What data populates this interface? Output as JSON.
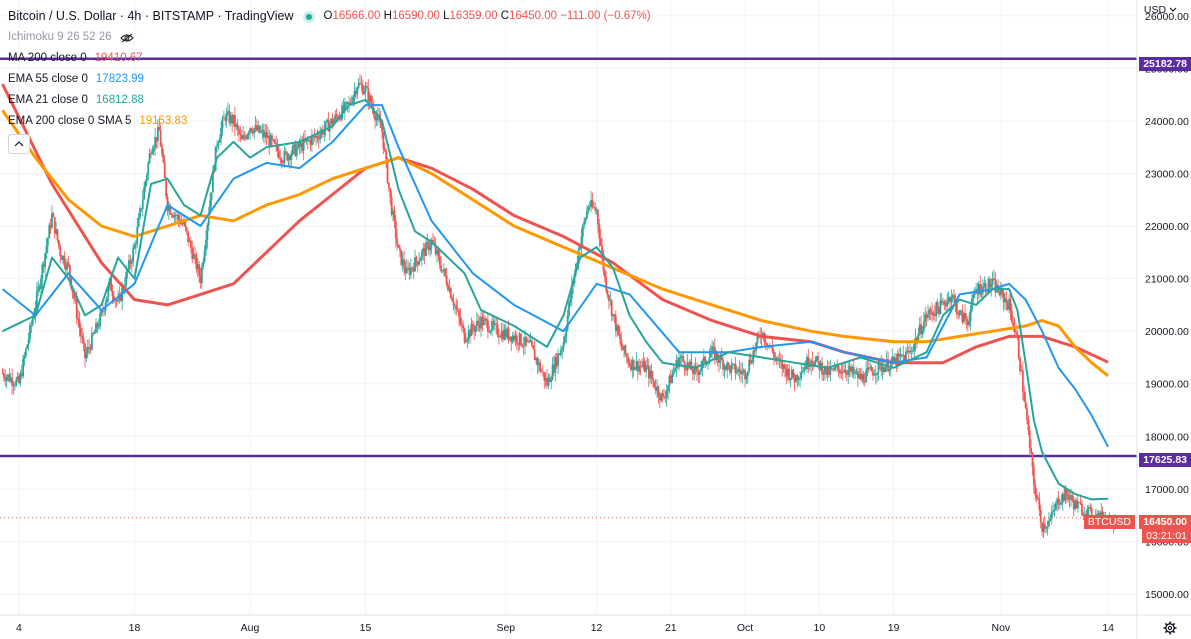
{
  "header": {
    "title": "Bitcoin / U.S. Dollar · 4h · BITSTAMP · TradingView",
    "ohlc": [
      {
        "k": "O",
        "v": "16566.00"
      },
      {
        "k": "H",
        "v": "16590.00"
      },
      {
        "k": "L",
        "v": "16359.00"
      },
      {
        "k": "C",
        "v": "16450.00"
      }
    ],
    "change": "−111.00 (−0.67%)",
    "currency_label": "USD"
  },
  "indicators": [
    {
      "label": "Ichimoku 9 26 52 26",
      "value": "",
      "color": "#9598a1"
    },
    {
      "label": "MA 200 close 0",
      "value": "19410.67",
      "color": "#ef5350"
    },
    {
      "label": "EMA 55 close 0",
      "value": "17823.99",
      "color": "#2196f3"
    },
    {
      "label": "EMA 21 close 0",
      "value": "16812.88",
      "color": "#26a69a"
    },
    {
      "label": "EMA 200 close 0 SMA 5",
      "value": "19153.83",
      "color": "#ff9800"
    }
  ],
  "price_tags": {
    "res_high": "25182.78",
    "res_low": "17625.83",
    "symbol": "BTCUSD",
    "last": "16450.00",
    "countdown": "03:21:01"
  },
  "chart_data": {
    "type": "line",
    "title": "Bitcoin / U.S. Dollar · 4h · BITSTAMP",
    "ylim": [
      14600,
      26300
    ],
    "y_ticks": [
      15000,
      16000,
      17000,
      18000,
      19000,
      20000,
      21000,
      22000,
      23000,
      24000,
      25000,
      26000
    ],
    "y_tick_labels": [
      "15000.00",
      "16000.00",
      "17000.00",
      "18000.00",
      "19000.00",
      "20000.00",
      "21000.00",
      "22000.00",
      "23000.00",
      "24000.00",
      "25000.00",
      "26000.00"
    ],
    "x_ticks": [
      {
        "label": "4",
        "t": 0
      },
      {
        "label": "18",
        "t": 14
      },
      {
        "label": "Aug",
        "t": 28
      },
      {
        "label": "15",
        "t": 42
      },
      {
        "label": "Sep",
        "t": 59
      },
      {
        "label": "12",
        "t": 70
      },
      {
        "label": "21",
        "t": 79
      },
      {
        "label": "Oct",
        "t": 88
      },
      {
        "label": "10",
        "t": 97
      },
      {
        "label": "19",
        "t": 106
      },
      {
        "label": "Nov",
        "t": 119
      },
      {
        "label": "14",
        "t": 132
      }
    ],
    "x_range": [
      -2.3,
      135.5
    ],
    "horizontal_levels": [
      25182.78,
      17625.83
    ],
    "last_price": 16450,
    "price_series": {
      "name": "BTCUSD",
      "t": [
        -2,
        0,
        2,
        4,
        5,
        6,
        8,
        10,
        11,
        12,
        14,
        16,
        17,
        18,
        20,
        22,
        24,
        25,
        26,
        27,
        28,
        30,
        32,
        34,
        36,
        38,
        40,
        41,
        42,
        43,
        44,
        45,
        46,
        47,
        48,
        50,
        52,
        54,
        56,
        58,
        60,
        62,
        64,
        66,
        67,
        68,
        69,
        70,
        71,
        72,
        73,
        74,
        76,
        78,
        80,
        82,
        84,
        86,
        88,
        90,
        92,
        94,
        96,
        98,
        100,
        102,
        104,
        106,
        108,
        110,
        112,
        113,
        114,
        115,
        116,
        118,
        120,
        121,
        122,
        123,
        124,
        125,
        126,
        127,
        128,
        129,
        130,
        131,
        132,
        133
      ],
      "values": [
        19200,
        19000,
        20500,
        22200,
        21500,
        21200,
        19500,
        20300,
        20900,
        20500,
        21600,
        23500,
        23800,
        22400,
        22000,
        21000,
        23600,
        24100,
        24000,
        23600,
        23900,
        23700,
        23300,
        23500,
        23700,
        24000,
        24300,
        24700,
        24600,
        24200,
        23800,
        22500,
        21500,
        21100,
        21300,
        21700,
        20900,
        19900,
        20200,
        20000,
        19900,
        19700,
        19000,
        19800,
        20800,
        21700,
        22400,
        22300,
        21000,
        20300,
        19700,
        19400,
        19300,
        18700,
        19500,
        19200,
        19600,
        19300,
        19200,
        20000,
        19400,
        19100,
        19500,
        19200,
        19300,
        19100,
        19300,
        19400,
        19600,
        20300,
        20500,
        20700,
        20300,
        20200,
        20800,
        20900,
        20500,
        19800,
        18500,
        17100,
        16300,
        16400,
        16800,
        16900,
        16700,
        16600,
        16500,
        16450,
        16450,
        16450
      ]
    },
    "series": [
      {
        "name": "MA 200",
        "color": "#ef5350",
        "t": [
          -2,
          4,
          10,
          14,
          18,
          22,
          26,
          30,
          34,
          38,
          42,
          46,
          50,
          55,
          60,
          66,
          72,
          78,
          84,
          90,
          96,
          100,
          106,
          112,
          116,
          120,
          124,
          128,
          132
        ],
        "values": [
          24700,
          22800,
          21300,
          20600,
          20500,
          20700,
          20900,
          21500,
          22100,
          22600,
          23100,
          23300,
          23100,
          22700,
          22200,
          21800,
          21300,
          20600,
          20200,
          19900,
          19800,
          19600,
          19400,
          19400,
          19700,
          19900,
          19900,
          19700,
          19410
        ]
      },
      {
        "name": "EMA 200",
        "color": "#ff9800",
        "t": [
          -2,
          2,
          6,
          10,
          14,
          18,
          22,
          26,
          30,
          34,
          38,
          42,
          46,
          50,
          55,
          60,
          66,
          72,
          78,
          84,
          90,
          96,
          100,
          106,
          110,
          114,
          118,
          122,
          124,
          126,
          128,
          130,
          132
        ],
        "values": [
          24200,
          23300,
          22500,
          22000,
          21800,
          22000,
          22200,
          22100,
          22400,
          22600,
          22900,
          23100,
          23300,
          23000,
          22500,
          22000,
          21600,
          21200,
          20800,
          20500,
          20200,
          20000,
          19900,
          19800,
          19800,
          19900,
          20000,
          20100,
          20200,
          20100,
          19700,
          19400,
          19150
        ]
      },
      {
        "name": "EMA 55",
        "color": "#2196f3",
        "t": [
          -2,
          2,
          6,
          10,
          14,
          18,
          22,
          26,
          30,
          34,
          38,
          42,
          44,
          46,
          50,
          55,
          60,
          66,
          70,
          74,
          80,
          86,
          90,
          96,
          100,
          106,
          110,
          114,
          118,
          120,
          122,
          124,
          126,
          128,
          130,
          132
        ],
        "values": [
          20800,
          20300,
          21100,
          20400,
          20900,
          22400,
          22000,
          22900,
          23200,
          23100,
          23600,
          24300,
          24300,
          23500,
          22100,
          21100,
          20500,
          20000,
          20900,
          20700,
          19600,
          19600,
          19700,
          19800,
          19600,
          19400,
          19500,
          20700,
          20800,
          20900,
          20600,
          20000,
          19300,
          18900,
          18400,
          17800
        ]
      },
      {
        "name": "EMA 21",
        "color": "#26a69a",
        "t": [
          -2,
          2,
          4,
          6,
          8,
          10,
          12,
          14,
          16,
          18,
          20,
          22,
          24,
          26,
          28,
          30,
          34,
          38,
          40,
          42,
          44,
          46,
          48,
          50,
          54,
          56,
          60,
          64,
          66,
          68,
          70,
          72,
          74,
          76,
          78,
          82,
          86,
          90,
          94,
          98,
          102,
          106,
          110,
          112,
          114,
          116,
          118,
          120,
          121,
          122,
          123,
          124,
          126,
          128,
          130,
          132
        ],
        "values": [
          20000,
          20300,
          21400,
          21000,
          20300,
          20500,
          21400,
          21000,
          22800,
          22900,
          22400,
          22200,
          23300,
          23600,
          23300,
          23500,
          23600,
          23900,
          24300,
          24400,
          24000,
          22700,
          21900,
          21700,
          21100,
          20400,
          20100,
          19700,
          20300,
          21400,
          21600,
          21200,
          20300,
          19800,
          19400,
          19300,
          19600,
          19500,
          19400,
          19300,
          19500,
          19300,
          19600,
          20300,
          20600,
          20500,
          20800,
          20800,
          20400,
          19400,
          18300,
          17700,
          17100,
          16900,
          16800,
          16810
        ]
      }
    ]
  }
}
